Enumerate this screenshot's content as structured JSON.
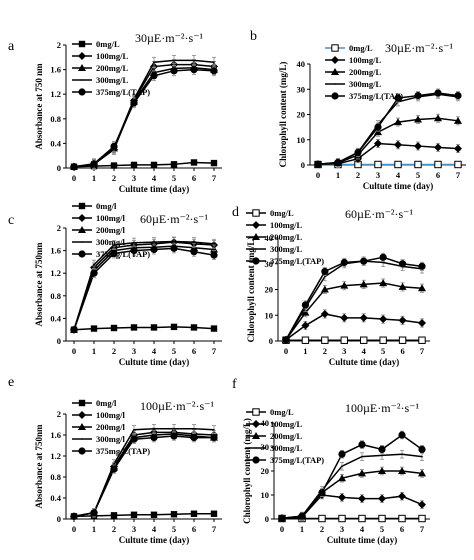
{
  "chart_data": [
    {
      "type": "line",
      "panel": "a",
      "condition": "30µE·m⁻²·s⁻¹",
      "xlabel": "Cultute time (day)",
      "ylabel": "Absorbance at 750 nm",
      "xlim": [
        0,
        7
      ],
      "ylim": [
        0,
        2.0
      ],
      "x": [
        0,
        1,
        2,
        3,
        4,
        5,
        6,
        7
      ],
      "xticks": [
        "0",
        "1",
        "2",
        "3",
        "4",
        "5",
        "6",
        "7"
      ],
      "yticks": [
        "0",
        "0.4",
        "0.8",
        "1.2",
        "1.6",
        "2"
      ],
      "series": [
        {
          "name": "0mg/L",
          "marker": "square",
          "values": [
            0.02,
            0.03,
            0.04,
            0.05,
            0.05,
            0.06,
            0.09,
            0.08
          ]
        },
        {
          "name": "100mg/L",
          "marker": "diamond",
          "values": [
            0.02,
            0.06,
            0.3,
            1.1,
            1.65,
            1.68,
            1.68,
            1.65
          ]
        },
        {
          "name": "200mg/L",
          "marker": "triangle",
          "values": [
            0.02,
            0.06,
            0.32,
            1.08,
            1.55,
            1.62,
            1.63,
            1.6
          ]
        },
        {
          "name": "300mg/L",
          "marker": "none",
          "values": [
            0.02,
            0.06,
            0.33,
            1.12,
            1.72,
            1.75,
            1.75,
            1.72
          ]
        },
        {
          "name": "375mg/L(TAP)",
          "marker": "circle",
          "values": [
            0.02,
            0.07,
            0.35,
            1.06,
            1.5,
            1.58,
            1.6,
            1.58
          ]
        }
      ]
    },
    {
      "type": "line",
      "panel": "b",
      "condition": "30µE·m⁻²·s⁻¹",
      "xlabel": "Cultute time (day)",
      "ylabel": "Chlorophyll content (mg/L)",
      "xlim": [
        0,
        7
      ],
      "ylim": [
        0,
        40
      ],
      "x": [
        0,
        1,
        2,
        3,
        4,
        5,
        6,
        7
      ],
      "xticks": [
        "0",
        "1",
        "2",
        "3",
        "4",
        "5",
        "6",
        "7"
      ],
      "yticks": [
        "0",
        "10",
        "20",
        "30",
        "40"
      ],
      "series": [
        {
          "name": "0mg/L",
          "marker": "square-open",
          "values": [
            0.2,
            0.2,
            0.2,
            0.2,
            0.2,
            0.2,
            0.2,
            0.2
          ]
        },
        {
          "name": "100mg/L",
          "marker": "diamond",
          "values": [
            0.3,
            0.5,
            2.5,
            8.5,
            8,
            7.5,
            7,
            6.5
          ]
        },
        {
          "name": "200mg/L",
          "marker": "triangle",
          "values": [
            0.3,
            0.8,
            4,
            13,
            17,
            18,
            18.5,
            17.5
          ]
        },
        {
          "name": "300mg/L",
          "marker": "none",
          "values": [
            0.3,
            1,
            5,
            16,
            25,
            27,
            28,
            27
          ]
        },
        {
          "name": "375mg/L(TAP)",
          "marker": "circle",
          "values": [
            0.3,
            1,
            5,
            15,
            26.5,
            27.5,
            28.5,
            27.5
          ]
        }
      ]
    },
    {
      "type": "line",
      "panel": "c",
      "condition": "60µE·m⁻²·s⁻¹",
      "xlabel": "Cultute time (day)",
      "ylabel": "Absorbance at 750nm",
      "xlim": [
        0,
        7
      ],
      "ylim": [
        0,
        2.0
      ],
      "x": [
        0,
        1,
        2,
        3,
        4,
        5,
        6,
        7
      ],
      "xticks": [
        "0",
        "1",
        "2",
        "3",
        "4",
        "5",
        "6",
        "7"
      ],
      "yticks": [
        "0",
        "0.4",
        "0.8",
        "1.2",
        "1.6",
        "2"
      ],
      "series": [
        {
          "name": "0mg/l",
          "marker": "square",
          "values": [
            0.2,
            0.22,
            0.23,
            0.24,
            0.24,
            0.25,
            0.24,
            0.22
          ]
        },
        {
          "name": "100mg/l",
          "marker": "diamond",
          "values": [
            0.2,
            1.3,
            1.65,
            1.7,
            1.72,
            1.75,
            1.72,
            1.7
          ]
        },
        {
          "name": "200mg/l",
          "marker": "triangle",
          "values": [
            0.2,
            1.25,
            1.6,
            1.65,
            1.66,
            1.68,
            1.65,
            1.62
          ]
        },
        {
          "name": "300mg/l",
          "marker": "none",
          "values": [
            0.2,
            1.35,
            1.7,
            1.74,
            1.75,
            1.76,
            1.75,
            1.72
          ]
        },
        {
          "name": "375mg/L(TAP)",
          "marker": "circle",
          "values": [
            0.2,
            1.2,
            1.55,
            1.6,
            1.62,
            1.64,
            1.58,
            1.52
          ]
        }
      ]
    },
    {
      "type": "line",
      "panel": "d",
      "condition": "60µE·m⁻²·s⁻¹",
      "xlabel": "Cultute time (day)",
      "ylabel": "Chlorophyll content (mg/L)",
      "xlim": [
        0,
        7
      ],
      "ylim": [
        0,
        40
      ],
      "x": [
        0,
        1,
        2,
        3,
        4,
        5,
        6,
        7
      ],
      "xticks": [
        "0",
        "1",
        "2",
        "3",
        "4",
        "5",
        "6",
        "7"
      ],
      "yticks": [
        "0",
        "10",
        "20",
        "30",
        "40"
      ],
      "series": [
        {
          "name": "0mg/L",
          "marker": "square-open",
          "values": [
            0.3,
            0.3,
            0.3,
            0.3,
            0.3,
            0.3,
            0.3,
            0.3
          ]
        },
        {
          "name": "100mg/L",
          "marker": "diamond",
          "values": [
            0.5,
            6,
            10.5,
            9,
            9,
            8.5,
            8,
            7
          ]
        },
        {
          "name": "200mg/L",
          "marker": "triangle",
          "values": [
            0.5,
            11,
            20,
            21.5,
            22,
            22.5,
            21,
            20.5
          ]
        },
        {
          "name": "300mg/L",
          "marker": "none",
          "values": [
            0.5,
            13,
            25,
            30,
            31,
            30.5,
            29,
            28
          ]
        },
        {
          "name": "375mg/L(TAP)",
          "marker": "circle",
          "values": [
            0.5,
            14,
            27,
            30.5,
            31,
            32.5,
            30,
            29
          ]
        }
      ]
    },
    {
      "type": "line",
      "panel": "e",
      "condition": "100µE·m⁻²·s⁻¹",
      "xlabel": "Cultute time (day)",
      "ylabel": "Absorbance at 750nm",
      "xlim": [
        0,
        7
      ],
      "ylim": [
        0,
        2.0
      ],
      "x": [
        0,
        1,
        2,
        3,
        4,
        5,
        6,
        7
      ],
      "xticks": [
        "0",
        "1",
        "2",
        "3",
        "4",
        "5",
        "6",
        "7"
      ],
      "yticks": [
        "0",
        "0.4",
        "0.8",
        "1.2",
        "1.6",
        "2"
      ],
      "series": [
        {
          "name": "0mg/l",
          "marker": "square",
          "values": [
            0.05,
            0.06,
            0.07,
            0.08,
            0.08,
            0.09,
            0.1,
            0.1
          ]
        },
        {
          "name": "100mg/l",
          "marker": "diamond",
          "values": [
            0.05,
            0.12,
            1.0,
            1.6,
            1.65,
            1.65,
            1.62,
            1.6
          ]
        },
        {
          "name": "200mg/l",
          "marker": "triangle",
          "values": [
            0.05,
            0.12,
            0.98,
            1.55,
            1.6,
            1.62,
            1.58,
            1.55
          ]
        },
        {
          "name": "300mg/l",
          "marker": "none",
          "values": [
            0.05,
            0.12,
            1.05,
            1.7,
            1.72,
            1.72,
            1.72,
            1.7
          ]
        },
        {
          "name": "375mg/L(TAP)",
          "marker": "circle",
          "values": [
            0.05,
            0.12,
            0.95,
            1.52,
            1.55,
            1.58,
            1.55,
            1.55
          ]
        }
      ]
    },
    {
      "type": "line",
      "panel": "f",
      "condition": "100µE·m⁻²·s⁻¹",
      "xlabel": "Cultute time (day)",
      "ylabel": "Chlorophyll content (mg/L)",
      "xlim": [
        0,
        7
      ],
      "ylim": [
        0,
        40
      ],
      "x": [
        0,
        1,
        2,
        3,
        4,
        5,
        6,
        7
      ],
      "xticks": [
        "0",
        "1",
        "2",
        "3",
        "4",
        "5",
        "6",
        "7"
      ],
      "yticks": [
        "0",
        "10",
        "20",
        "30",
        "40"
      ],
      "series": [
        {
          "name": "0mg/L",
          "marker": "square-open",
          "values": [
            0.2,
            0.2,
            0.2,
            0.2,
            0.2,
            0.2,
            0.2,
            0.2
          ]
        },
        {
          "name": "100mg/L",
          "marker": "diamond",
          "values": [
            0.3,
            0.8,
            10,
            9,
            8.5,
            8.5,
            9.5,
            6
          ]
        },
        {
          "name": "200mg/L",
          "marker": "triangle",
          "values": [
            0.3,
            1,
            11,
            17,
            19,
            20,
            20,
            19
          ]
        },
        {
          "name": "300mg/L",
          "marker": "none",
          "values": [
            0.3,
            1.2,
            12,
            22,
            26,
            26.5,
            27,
            26
          ]
        },
        {
          "name": "375mg/L(TAP)",
          "marker": "circle",
          "values": [
            0.3,
            1.2,
            11,
            27,
            31,
            29,
            35,
            29
          ]
        }
      ]
    }
  ]
}
